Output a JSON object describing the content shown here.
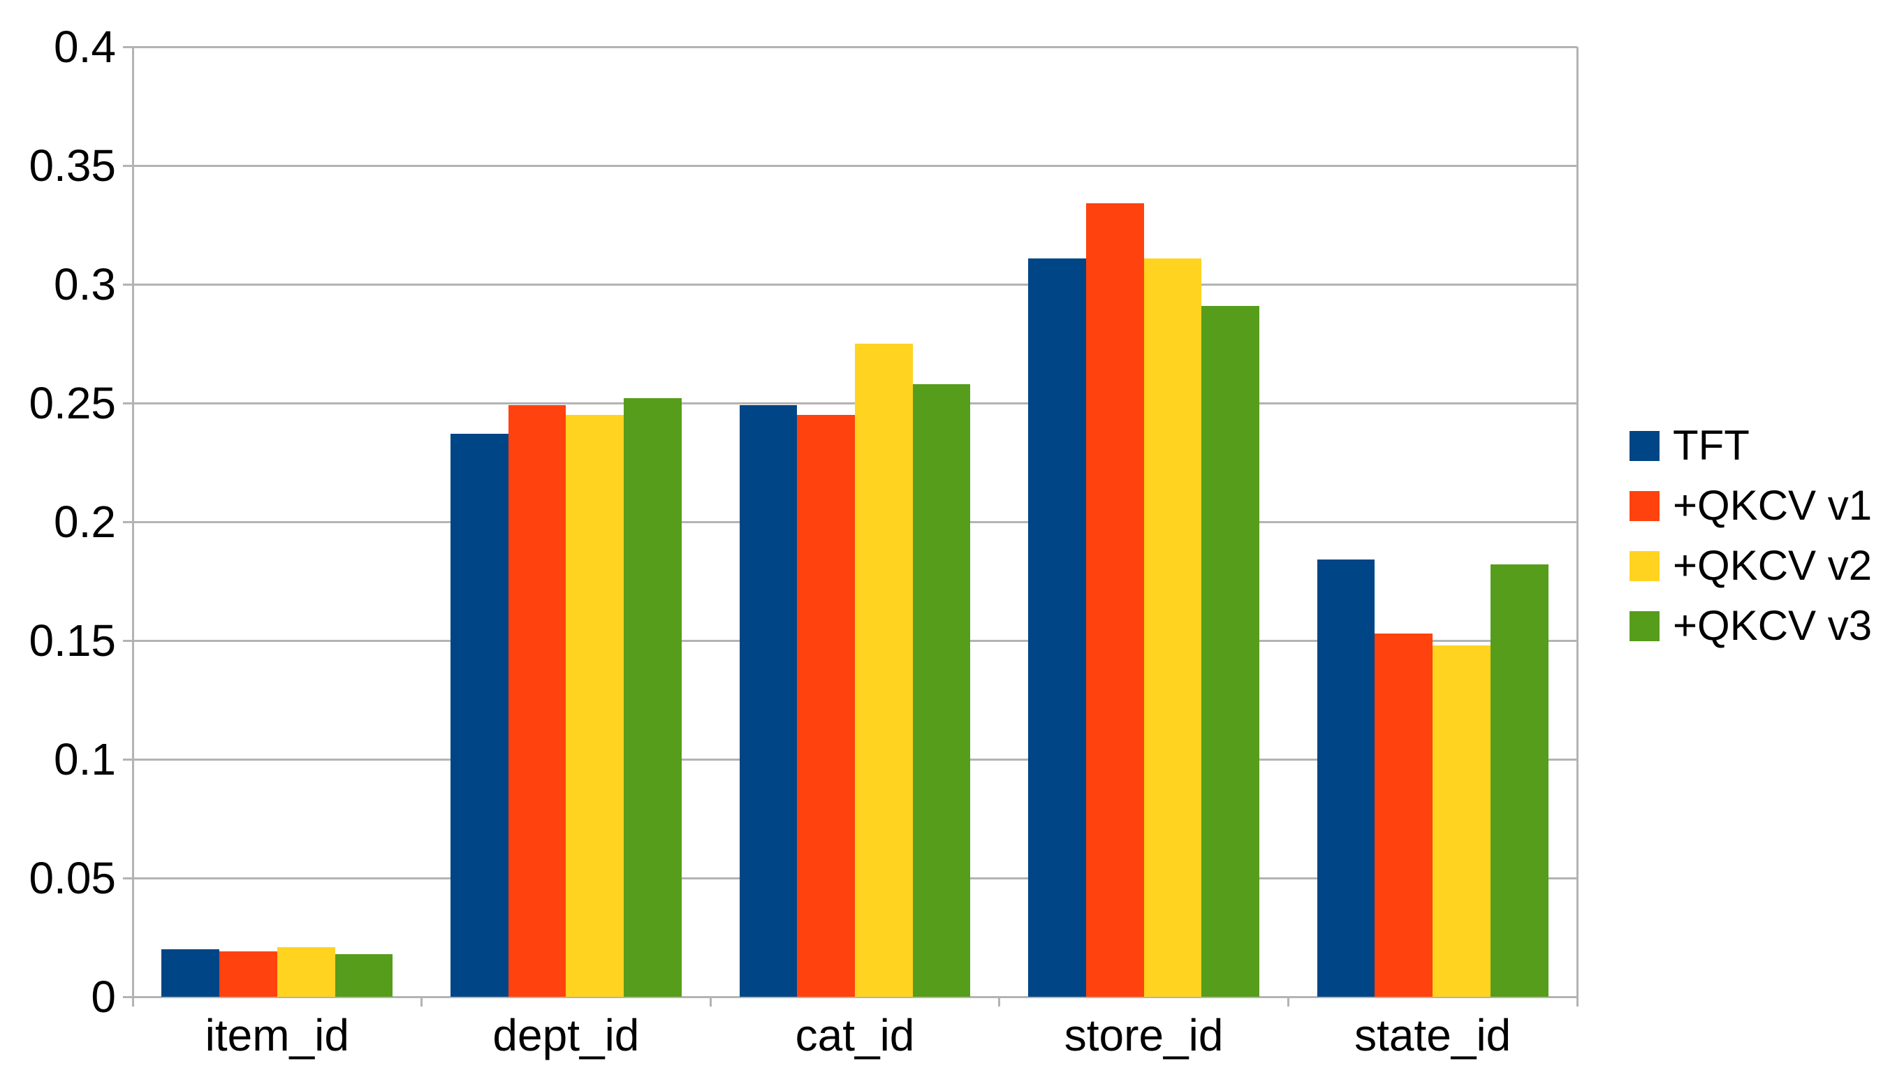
{
  "chart_data": {
    "type": "bar",
    "title": "",
    "xlabel": "",
    "ylabel": "",
    "categories": [
      "item_id",
      "dept_id",
      "cat_id",
      "store_id",
      "state_id"
    ],
    "series": [
      {
        "name": "TFT",
        "color": "#004586",
        "values": [
          0.02,
          0.237,
          0.249,
          0.311,
          0.184
        ]
      },
      {
        "name": "+QKCV v1",
        "color": "#FF420E",
        "values": [
          0.019,
          0.249,
          0.245,
          0.334,
          0.153
        ]
      },
      {
        "name": "+QKCV v2",
        "color": "#FFD320",
        "values": [
          0.021,
          0.245,
          0.275,
          0.311,
          0.148
        ]
      },
      {
        "name": "+QKCV v3",
        "color": "#579D1C",
        "values": [
          0.018,
          0.252,
          0.258,
          0.291,
          0.182
        ]
      }
    ],
    "ylim": [
      0,
      0.4
    ],
    "y_ticks": {
      "values": [
        0,
        0.05,
        0.1,
        0.15,
        0.2,
        0.25,
        0.3,
        0.35,
        0.4
      ],
      "labels": [
        "0",
        "0.05",
        "0.1",
        "0.15",
        "0.2",
        "0.25",
        "0.3",
        "0.35",
        "0.4"
      ]
    },
    "grid": "horizontal",
    "legend_position": "right",
    "bar_group_inner_fraction": 0.8
  },
  "colors": {
    "background": "#ffffff",
    "grid": "#b3b3b3",
    "axis": "#b3b3b3",
    "text": "#000000"
  }
}
